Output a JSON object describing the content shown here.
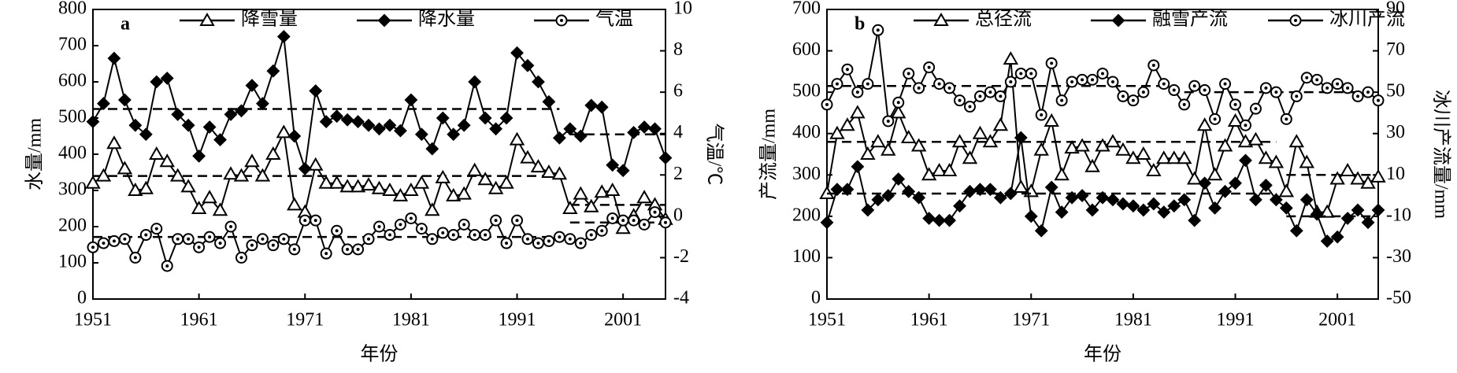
{
  "chart_data": [
    {
      "type": "line",
      "label": "a",
      "x_label": "年份",
      "y_label": "水量/mm",
      "y2_label": "气温/℃",
      "xlim": [
        1951,
        2005
      ],
      "xticks": [
        1951,
        1961,
        1971,
        1981,
        1991,
        2001
      ],
      "ylim": [
        0,
        800
      ],
      "yticks": [
        0,
        100,
        200,
        300,
        400,
        500,
        600,
        700,
        800
      ],
      "y2lim": [
        -4,
        10
      ],
      "y2ticks": [
        -4,
        -2,
        0,
        2,
        4,
        6,
        8,
        10
      ],
      "series": [
        {
          "name": "降雪量",
          "color": "#000000",
          "marker": "triangle",
          "values": [
            320,
            340,
            430,
            360,
            300,
            305,
            400,
            380,
            340,
            310,
            250,
            280,
            245,
            345,
            340,
            380,
            340,
            400,
            460,
            260,
            240,
            370,
            320,
            320,
            310,
            310,
            315,
            305,
            300,
            285,
            300,
            320,
            245,
            335,
            285,
            290,
            355,
            330,
            305,
            320,
            440,
            390,
            365,
            350,
            345,
            250,
            290,
            255,
            295,
            300,
            195,
            230,
            280,
            260,
            220
          ],
          "mean_lines": [
            {
              "x": [
                1951,
                1995
              ],
              "value": 340
            },
            {
              "x": [
                1996,
                2005
              ],
              "value": 260
            }
          ]
        },
        {
          "name": "降水量",
          "color": "#000000",
          "marker": "diamond",
          "values": [
            490,
            540,
            665,
            550,
            480,
            455,
            600,
            610,
            510,
            480,
            395,
            475,
            440,
            510,
            520,
            590,
            540,
            630,
            725,
            450,
            360,
            575,
            490,
            505,
            495,
            490,
            480,
            470,
            480,
            465,
            550,
            455,
            415,
            500,
            455,
            480,
            600,
            500,
            470,
            500,
            680,
            645,
            600,
            545,
            445,
            470,
            450,
            535,
            530,
            370,
            355,
            460,
            475,
            470,
            390
          ],
          "mean_lines": [
            {
              "x": [
                1951,
                1995
              ],
              "value": 525
            },
            {
              "x": [
                1996,
                2005
              ],
              "value": 455
            }
          ]
        },
        {
          "name": "气温",
          "color": "#000000",
          "marker": "circle",
          "axis": "y2",
          "values": [
            -1.5,
            -1.3,
            -1.2,
            -1.1,
            -2.0,
            -0.9,
            -0.6,
            -2.4,
            -1.1,
            -1.1,
            -1.5,
            -1.0,
            -1.3,
            -0.5,
            -2.0,
            -1.4,
            -1.1,
            -1.4,
            -1.1,
            -1.6,
            -0.2,
            -0.2,
            -1.8,
            -0.7,
            -1.6,
            -1.6,
            -1.1,
            -0.5,
            -0.9,
            -0.4,
            -0.1,
            -0.6,
            -1.1,
            -0.8,
            -0.9,
            -0.4,
            -0.9,
            -0.9,
            -0.2,
            -1.3,
            -0.2,
            -1.1,
            -1.3,
            -1.2,
            -1.0,
            -1.1,
            -1.3,
            -0.9,
            -0.7,
            -0.1,
            -0.2,
            -0.2,
            -0.4,
            0.2,
            -0.3
          ],
          "mean_lines": [
            {
              "x": [
                1951,
                1995
              ],
              "value": -1.0
            },
            {
              "x": [
                1996,
                2005
              ],
              "value": -0.3
            }
          ]
        }
      ]
    },
    {
      "type": "line",
      "label": "b",
      "x_label": "年份",
      "y_label": "产流量/mm",
      "y2_label": "冰川产流量/mm",
      "xlim": [
        1951,
        2005
      ],
      "xticks": [
        1951,
        1961,
        1971,
        1981,
        1991,
        2001
      ],
      "ylim": [
        0,
        700
      ],
      "yticks": [
        0,
        100,
        200,
        300,
        400,
        500,
        600,
        700
      ],
      "y2lim": [
        -50,
        90
      ],
      "y2ticks": [
        -50,
        -30,
        -10,
        10,
        30,
        50,
        70,
        90
      ],
      "series": [
        {
          "name": "总径流",
          "color": "#000000",
          "marker": "triangle",
          "values": [
            255,
            400,
            420,
            450,
            350,
            380,
            360,
            450,
            390,
            370,
            300,
            310,
            310,
            380,
            340,
            400,
            380,
            420,
            580,
            270,
            260,
            360,
            430,
            300,
            365,
            370,
            320,
            370,
            380,
            360,
            340,
            350,
            310,
            340,
            340,
            340,
            290,
            420,
            300,
            370,
            430,
            380,
            385,
            340,
            330,
            260,
            380,
            330,
            210,
            210,
            290,
            310,
            290,
            280,
            295
          ],
          "mean_lines": [
            {
              "x": [
                1951,
                1995
              ],
              "value": 380
            },
            {
              "x": [
                1996,
                2005
              ],
              "value": 300
            }
          ]
        },
        {
          "name": "融雪产流",
          "color": "#000000",
          "marker": "diamond",
          "values": [
            185,
            265,
            265,
            320,
            215,
            240,
            250,
            290,
            260,
            245,
            195,
            190,
            190,
            225,
            260,
            265,
            265,
            245,
            255,
            390,
            200,
            165,
            270,
            210,
            245,
            250,
            215,
            245,
            240,
            230,
            225,
            215,
            230,
            210,
            225,
            240,
            190,
            280,
            220,
            260,
            280,
            335,
            240,
            275,
            240,
            220,
            165,
            240,
            205,
            140,
            150,
            195,
            215,
            185,
            215
          ],
          "mean_lines": [
            {
              "x": [
                1951,
                1995
              ],
              "value": 255
            },
            {
              "x": [
                1996,
                2005
              ],
              "value": 200
            }
          ]
        },
        {
          "name": "冰川产流",
          "color": "#000000",
          "marker": "circle",
          "axis": "y2",
          "values": [
            44,
            54,
            61,
            50,
            54,
            80,
            36,
            45,
            59,
            52,
            62,
            54,
            52,
            46,
            43,
            48,
            50,
            48,
            55,
            59,
            59,
            39,
            64,
            46,
            55,
            56,
            56,
            59,
            55,
            48,
            46,
            50,
            63,
            54,
            51,
            44,
            53,
            51,
            37,
            54,
            44,
            34,
            42,
            52,
            50,
            37,
            48,
            57,
            56,
            52,
            54,
            52,
            48,
            50,
            46
          ],
          "mean_lines": [
            {
              "x": [
                1951,
                1985
              ],
              "value": 53
            },
            {
              "x": [
                1986,
                2005
              ],
              "value": 50
            }
          ]
        }
      ]
    }
  ]
}
